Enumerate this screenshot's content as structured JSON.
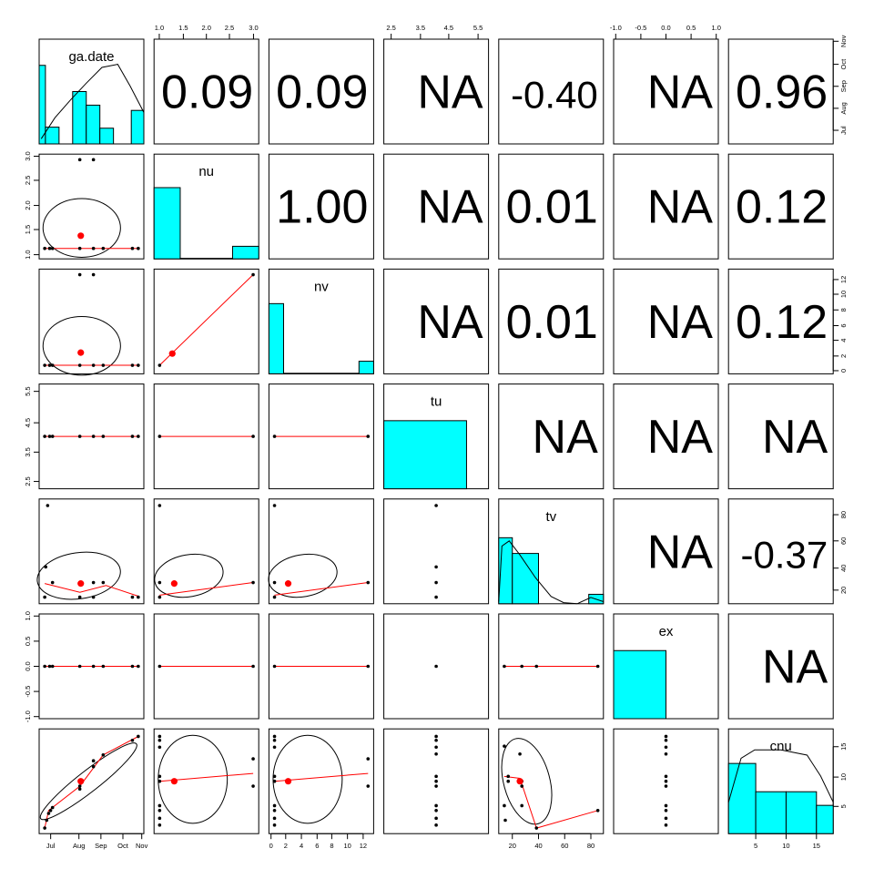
{
  "chart_data": {
    "type": "scatter",
    "subtype": "pairs-panel",
    "variables": [
      "ga.date",
      "nu",
      "nv",
      "tu",
      "tv",
      "ex",
      "cnu"
    ],
    "correlations": [
      {
        "row": 0,
        "col": 1,
        "label": "0.09"
      },
      {
        "row": 0,
        "col": 2,
        "label": "0.09"
      },
      {
        "row": 0,
        "col": 3,
        "label": "NA"
      },
      {
        "row": 0,
        "col": 4,
        "label": "-0.40"
      },
      {
        "row": 0,
        "col": 5,
        "label": "NA"
      },
      {
        "row": 0,
        "col": 6,
        "label": "0.96"
      },
      {
        "row": 1,
        "col": 2,
        "label": "1.00"
      },
      {
        "row": 1,
        "col": 3,
        "label": "NA"
      },
      {
        "row": 1,
        "col": 4,
        "label": "0.01"
      },
      {
        "row": 1,
        "col": 5,
        "label": "NA"
      },
      {
        "row": 1,
        "col": 6,
        "label": "0.12"
      },
      {
        "row": 2,
        "col": 3,
        "label": "NA"
      },
      {
        "row": 2,
        "col": 4,
        "label": "0.01"
      },
      {
        "row": 2,
        "col": 5,
        "label": "NA"
      },
      {
        "row": 2,
        "col": 6,
        "label": "0.12"
      },
      {
        "row": 3,
        "col": 4,
        "label": "NA"
      },
      {
        "row": 3,
        "col": 5,
        "label": "NA"
      },
      {
        "row": 3,
        "col": 6,
        "label": "NA"
      },
      {
        "row": 4,
        "col": 5,
        "label": "NA"
      },
      {
        "row": 4,
        "col": 6,
        "label": "-0.37"
      },
      {
        "row": 5,
        "col": 6,
        "label": "NA"
      }
    ],
    "axes": {
      "top": [
        {
          "col": 1,
          "ticks": [
            "1.0",
            "1.5",
            "2.0",
            "2.5",
            "3.0"
          ]
        },
        {
          "col": 3,
          "ticks": [
            "2.5",
            "3.5",
            "4.5",
            "5.5"
          ]
        },
        {
          "col": 5,
          "ticks": [
            "-1.0",
            "-0.5",
            "0.0",
            "0.5",
            "1.0"
          ]
        }
      ],
      "right": [
        {
          "row": 0,
          "ticks": [
            "Jul",
            "Aug",
            "Sep",
            "Oct",
            "Nov"
          ]
        },
        {
          "row": 2,
          "ticks": [
            "0",
            "2",
            "4",
            "6",
            "8",
            "10",
            "12"
          ]
        },
        {
          "row": 4,
          "ticks": [
            "20",
            "40",
            "60",
            "80"
          ]
        },
        {
          "row": 6,
          "ticks": [
            "5",
            "10",
            "15"
          ]
        }
      ],
      "left": [
        {
          "row": 1,
          "ticks": [
            "1.0",
            "1.5",
            "2.0",
            "2.5",
            "3.0"
          ]
        },
        {
          "row": 3,
          "ticks": [
            "2.5",
            "3.5",
            "4.5",
            "5.5"
          ]
        },
        {
          "row": 5,
          "ticks": [
            "-1.0",
            "-0.5",
            "0.0",
            "0.5",
            "1.0"
          ]
        }
      ],
      "bottom": [
        {
          "col": 0,
          "ticks": [
            "Jul",
            "Aug",
            "Sep",
            "Oct",
            "Nov"
          ]
        },
        {
          "col": 2,
          "ticks": [
            "0",
            "2",
            "4",
            "6",
            "8",
            "10",
            "12"
          ]
        },
        {
          "col": 4,
          "ticks": [
            "20",
            "40",
            "60",
            "80"
          ]
        },
        {
          "col": 6,
          "ticks": [
            "5",
            "10",
            "15"
          ]
        }
      ]
    },
    "colors": {
      "histogram_fill": "#00ffff",
      "points": "#000000",
      "smooth_line": "#ff0000",
      "centroid": "#ff0000",
      "ellipse": "#000000"
    }
  }
}
